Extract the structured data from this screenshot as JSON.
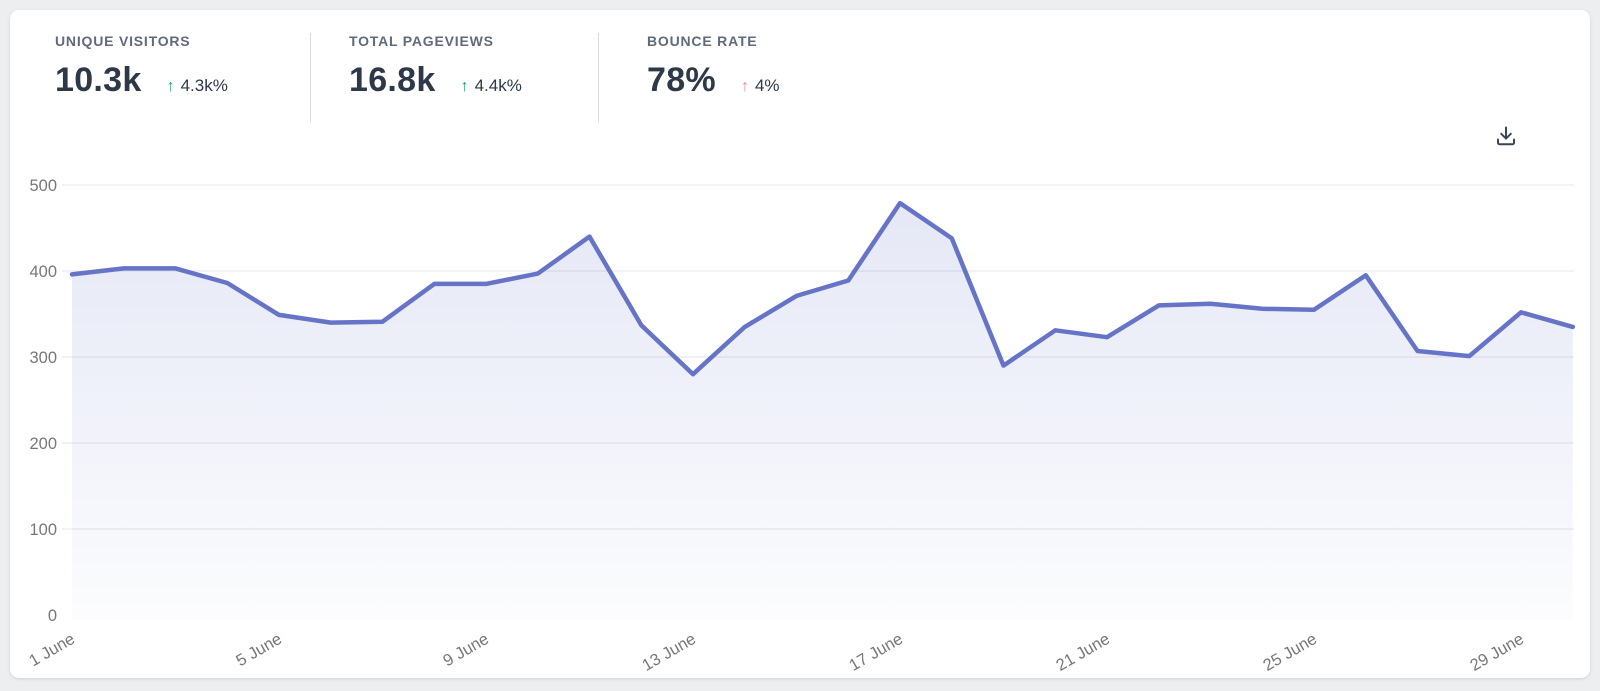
{
  "header": {
    "stats": [
      {
        "label": "UNIQUE VISITORS",
        "value": "10.3k",
        "arrow": "↑",
        "delta": "4.3k%",
        "direction": "up",
        "delta_color": "#16a374"
      },
      {
        "label": "TOTAL PAGEVIEWS",
        "value": "16.8k",
        "arrow": "↑",
        "delta": "4.4k%",
        "direction": "up",
        "delta_color": "#16a374"
      },
      {
        "label": "BOUNCE RATE",
        "value": "78%",
        "arrow": "↑",
        "delta": "4%",
        "direction": "up",
        "delta_color": "#f87f7f"
      }
    ],
    "download_icon": "download-tray-arrow"
  },
  "colors": {
    "page_bg": "#eceef0",
    "card_bg": "#ffffff",
    "line": "#6674c8",
    "grid": "#e9e9ec",
    "axis_label": "#76777a",
    "stat_label": "#5f6b7a",
    "stat_value": "#2d3848",
    "delta_up": "#16a374",
    "delta_down_bad": "#f87f7f",
    "divider": "#d9dbde",
    "icon": "#3a4558"
  },
  "chart_data": {
    "type": "area",
    "title": "",
    "xlabel": "",
    "ylabel": "",
    "num_points": 30,
    "x_tick_labels": [
      "1 June",
      "5 June",
      "9 June",
      "13 June",
      "17 June",
      "21 June",
      "25 June",
      "29 June"
    ],
    "x_tick_indices": [
      0,
      4,
      8,
      12,
      16,
      20,
      24,
      28
    ],
    "values": [
      396,
      403,
      403,
      386,
      349,
      340,
      341,
      385,
      385,
      397,
      440,
      337,
      280,
      335,
      371,
      389,
      479,
      438,
      290,
      331,
      323,
      360,
      362,
      356,
      355,
      395,
      307,
      301,
      352,
      335
    ],
    "y_ticks": [
      0,
      100,
      200,
      300,
      400,
      500
    ],
    "ylim": [
      0,
      500
    ],
    "grid": "horizontal",
    "legend": "none",
    "x_label_rotation_deg": -30
  }
}
